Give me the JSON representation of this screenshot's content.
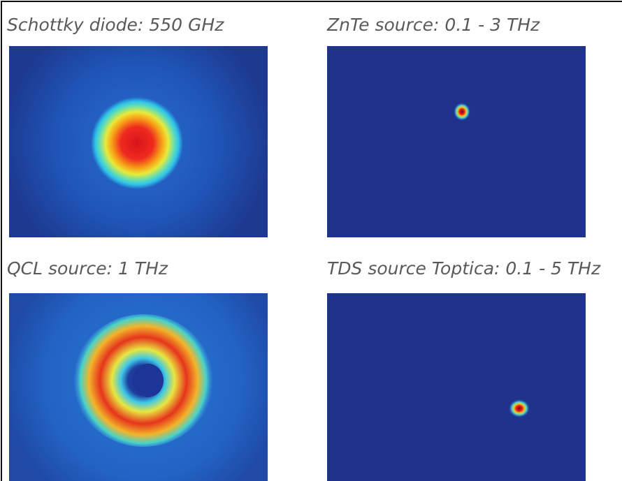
{
  "panels": [
    {
      "caption": "Schottky diode: 550 GHz"
    },
    {
      "caption": "ZnTe source: 0.1 - 3 THz"
    },
    {
      "caption": "QCL source: 1 THz"
    },
    {
      "caption": "TDS source Toptica: 0.1 - 5 THz"
    }
  ]
}
